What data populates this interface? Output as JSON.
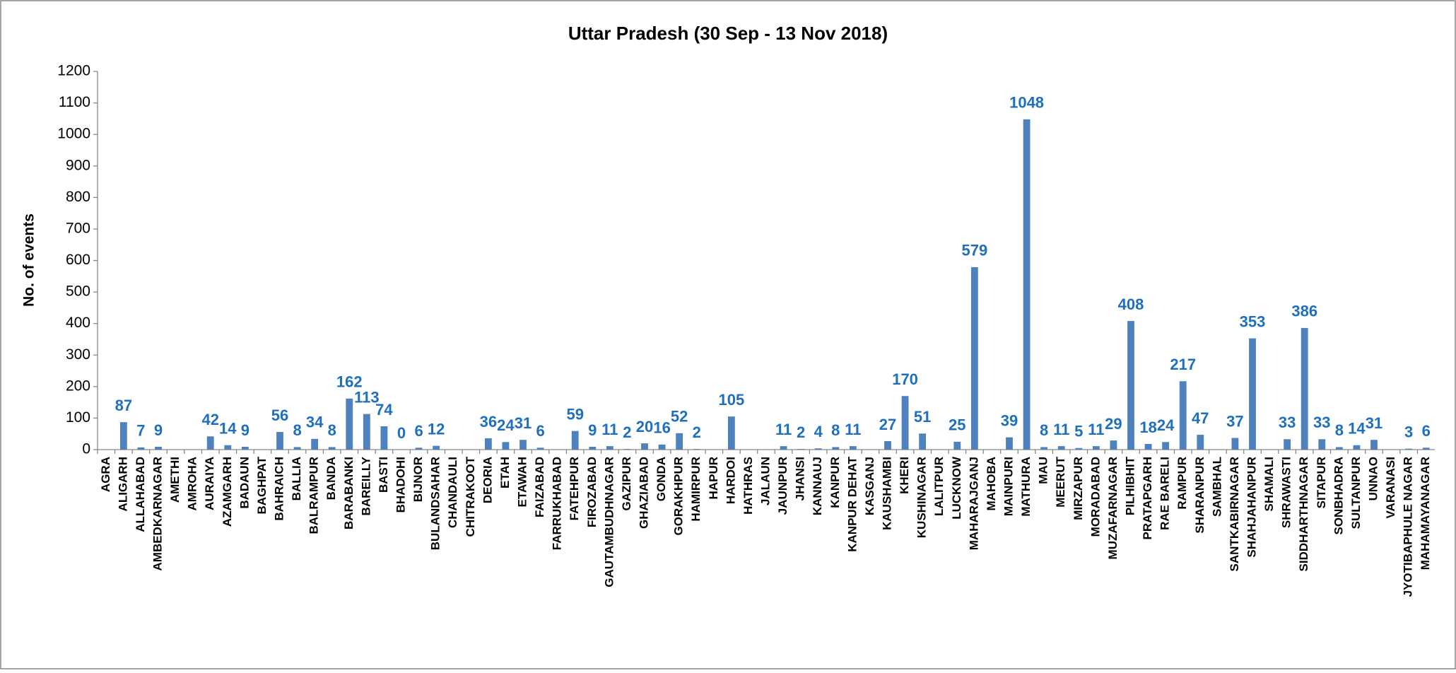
{
  "chart_data": {
    "type": "bar",
    "title": "Uttar Pradesh (30 Sep - 13 Nov 2018)",
    "y_label": "No. of events",
    "categories": [
      "AGRA",
      "ALIGARH",
      "ALLAHABAD",
      "AMBEDKARNAGAR",
      "AMETHI",
      "AMROHA",
      "AURAIYA",
      "AZAMGARH",
      "BADAUN",
      "BAGHPAT",
      "BAHRAICH",
      "BALLIA",
      "BALRAMPUR",
      "BANDA",
      "BARABANKI",
      "BAREILLY",
      "BASTI",
      "BHADOHI",
      "BIJNOR",
      "BULANDSAHAR",
      "CHANDAULI",
      "CHITRAKOOT",
      "DEORIA",
      "ETAH",
      "ETAWAH",
      "FAIZABAD",
      "FARRUKHABAD",
      "FATEHPUR",
      "FIROZABAD",
      "GAUTAMBUDHNAGAR",
      "GAZIPUR",
      "GHAZIABAD",
      "GONDA",
      "GORAKHPUR",
      "HAMIRPUR",
      "HAPUR",
      "HARDOI",
      "HATHRAS",
      "JALAUN",
      "JAUNPUR",
      "JHANSI",
      "KANNAUJ",
      "KANPUR",
      "KANPUR DEHAT",
      "KASGANJ",
      "KAUSHAMBI",
      "KHERI",
      "KUSHINAGAR",
      "LALITPUR",
      "LUCKNOW",
      "MAHARAJGANJ",
      "MAHOBA",
      "MAINPURI",
      "MATHURA",
      "MAU",
      "MEERUT",
      "MIRZAPUR",
      "MORADABAD",
      "MUZAFARNAGAR",
      "PILHIBHIT",
      "PRATAPGARH",
      "RAE BARELI",
      "RAMPUR",
      "SHARANPUR",
      "SAMBHAL",
      "SANTKABIRNAGAR",
      "SHAHJAHANPUR",
      "SHAMALI",
      "SHRAWASTI",
      "SIDDHARTHNAGAR",
      "SITAPUR",
      "SONBHADRA",
      "SULTANPUR",
      "UNNAO",
      "VARANASI",
      "JYOTIBAPHULE NAGAR",
      "MAHAMAYANAGAR"
    ],
    "values": [
      null,
      87,
      7,
      9,
      null,
      null,
      42,
      14,
      9,
      null,
      56,
      8,
      34,
      8,
      162,
      113,
      74,
      0,
      6,
      12,
      null,
      null,
      36,
      24,
      31,
      6,
      null,
      59,
      9,
      11,
      2,
      20,
      16,
      52,
      2,
      null,
      105,
      null,
      null,
      11,
      2,
      4,
      8,
      11,
      null,
      27,
      170,
      51,
      null,
      25,
      579,
      null,
      39,
      1048,
      8,
      11,
      5,
      11,
      29,
      408,
      18,
      24,
      217,
      47,
      null,
      37,
      353,
      null,
      33,
      386,
      33,
      8,
      14,
      31,
      null,
      3,
      6
    ],
    "color": "#4f81bd",
    "label_color": "#1f6fbf",
    "ylim": [
      0,
      1200
    ],
    "yticks": [
      0,
      100,
      200,
      300,
      400,
      500,
      600,
      700,
      800,
      900,
      1000,
      1100,
      1200
    ],
    "grid": false
  }
}
